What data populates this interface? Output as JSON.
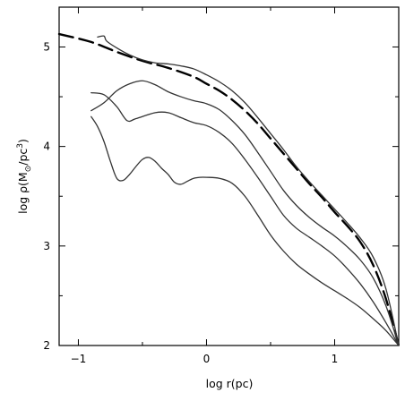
{
  "chart_data": {
    "type": "line",
    "title": "",
    "xlabel": "log r(pc)",
    "ylabel_parts": {
      "prefix": "log ρ(M",
      "sub": "⊙",
      "mid": "/pc",
      "sup": "3",
      "suffix": ")"
    },
    "xlim": [
      -1.15,
      1.5
    ],
    "ylim": [
      2,
      5.4
    ],
    "x_ticks": [
      {
        "value": -1,
        "label": "−1"
      },
      {
        "value": 0,
        "label": "0"
      },
      {
        "value": 1,
        "label": "1"
      }
    ],
    "x_minor_ticks": [
      -0.5,
      0.5
    ],
    "y_ticks": [
      {
        "value": 2,
        "label": "2"
      },
      {
        "value": 3,
        "label": "3"
      },
      {
        "value": 4,
        "label": "4"
      },
      {
        "value": 5,
        "label": "5"
      }
    ],
    "y_minor_ticks": [
      2.5,
      3.5,
      4.5
    ],
    "grid": false,
    "legend": "none",
    "series": [
      {
        "style": "dashed",
        "color": "#000000",
        "x": [
          -1.15,
          -0.9,
          -0.7,
          -0.5,
          -0.3,
          -0.1,
          0.0,
          0.1,
          0.2,
          0.3,
          0.4,
          0.5,
          0.6,
          0.7,
          0.8,
          0.9,
          1.0,
          1.1,
          1.2,
          1.3,
          1.4,
          1.5
        ],
        "y": [
          5.13,
          5.05,
          4.95,
          4.86,
          4.79,
          4.7,
          4.63,
          4.56,
          4.47,
          4.36,
          4.23,
          4.08,
          3.93,
          3.78,
          3.63,
          3.49,
          3.34,
          3.2,
          3.04,
          2.81,
          2.47,
          2.0
        ]
      },
      {
        "style": "solid",
        "color": "#333333",
        "x": [
          -0.85,
          -0.8,
          -0.78,
          -0.7,
          -0.6,
          -0.5,
          -0.4,
          -0.3,
          -0.2,
          -0.1,
          0.0,
          0.1,
          0.2,
          0.3,
          0.4,
          0.5,
          0.6,
          0.7,
          0.8,
          0.9,
          1.0,
          1.1,
          1.2,
          1.3,
          1.4,
          1.5
        ],
        "y": [
          5.1,
          5.11,
          5.06,
          4.99,
          4.92,
          4.87,
          4.84,
          4.83,
          4.81,
          4.78,
          4.72,
          4.65,
          4.56,
          4.44,
          4.29,
          4.13,
          3.97,
          3.8,
          3.65,
          3.51,
          3.37,
          3.23,
          3.08,
          2.89,
          2.57,
          2.0
        ]
      },
      {
        "style": "solid",
        "color": "#333333",
        "x": [
          -0.9,
          -0.8,
          -0.7,
          -0.6,
          -0.5,
          -0.4,
          -0.3,
          -0.2,
          -0.1,
          0.0,
          0.1,
          0.2,
          0.3,
          0.4,
          0.5,
          0.6,
          0.7,
          0.8,
          0.9,
          1.0,
          1.1,
          1.2,
          1.3,
          1.4,
          1.5
        ],
        "y": [
          4.36,
          4.44,
          4.56,
          4.63,
          4.66,
          4.62,
          4.55,
          4.5,
          4.46,
          4.43,
          4.37,
          4.26,
          4.12,
          3.94,
          3.75,
          3.56,
          3.41,
          3.29,
          3.19,
          3.1,
          2.99,
          2.86,
          2.68,
          2.4,
          2.0
        ]
      },
      {
        "style": "solid",
        "color": "#333333",
        "x": [
          -0.9,
          -0.8,
          -0.7,
          -0.62,
          -0.55,
          -0.4,
          -0.3,
          -0.2,
          -0.1,
          0.0,
          0.1,
          0.2,
          0.3,
          0.4,
          0.5,
          0.6,
          0.7,
          0.8,
          0.9,
          1.0,
          1.1,
          1.2,
          1.3,
          1.4,
          1.5
        ],
        "y": [
          4.54,
          4.52,
          4.4,
          4.26,
          4.28,
          4.34,
          4.34,
          4.29,
          4.24,
          4.21,
          4.14,
          4.03,
          3.87,
          3.69,
          3.5,
          3.31,
          3.18,
          3.09,
          3.0,
          2.9,
          2.77,
          2.62,
          2.44,
          2.23,
          2.0
        ]
      },
      {
        "style": "solid",
        "color": "#333333",
        "x": [
          -0.9,
          -0.85,
          -0.8,
          -0.75,
          -0.7,
          -0.65,
          -0.6,
          -0.55,
          -0.5,
          -0.45,
          -0.4,
          -0.35,
          -0.3,
          -0.25,
          -0.2,
          -0.15,
          -0.1,
          -0.05,
          0.0,
          0.1,
          0.2,
          0.3,
          0.4,
          0.5,
          0.6,
          0.7,
          0.8,
          0.9,
          1.0,
          1.1,
          1.2,
          1.3,
          1.4,
          1.5
        ],
        "y": [
          4.3,
          4.2,
          4.05,
          3.85,
          3.68,
          3.66,
          3.72,
          3.8,
          3.87,
          3.89,
          3.85,
          3.78,
          3.72,
          3.64,
          3.62,
          3.65,
          3.68,
          3.69,
          3.69,
          3.68,
          3.63,
          3.5,
          3.31,
          3.11,
          2.95,
          2.82,
          2.72,
          2.63,
          2.55,
          2.47,
          2.38,
          2.27,
          2.15,
          2.0
        ]
      }
    ]
  }
}
